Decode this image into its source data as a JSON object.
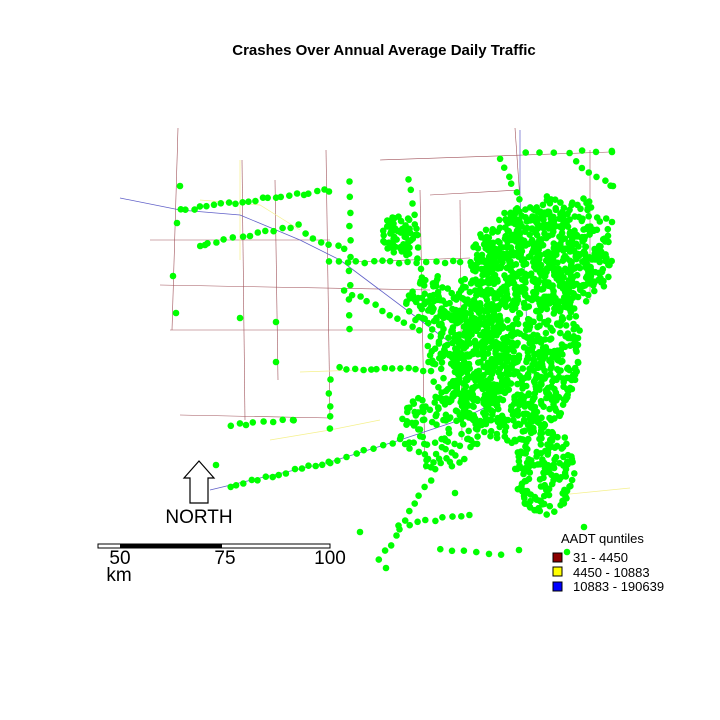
{
  "title": "Crashes Over Annual Average Daily Traffic",
  "north_arrow": {
    "label": "NORTH"
  },
  "scale_bar": {
    "ticks": [
      "50",
      "75",
      "100"
    ],
    "unit": "km"
  },
  "legend": {
    "title": "AADT quntiles",
    "items": [
      {
        "label": "31 - 4450",
        "color": "#8b0000"
      },
      {
        "label": "4450 - 10883",
        "color": "#ffff00"
      },
      {
        "label": "10883 - 190639",
        "color": "#0000ff"
      }
    ]
  },
  "colors": {
    "crash_points": "#00ff00",
    "road_low": "#a0525a",
    "road_mid": "#f5f08c",
    "road_high": "#6060c8"
  }
}
